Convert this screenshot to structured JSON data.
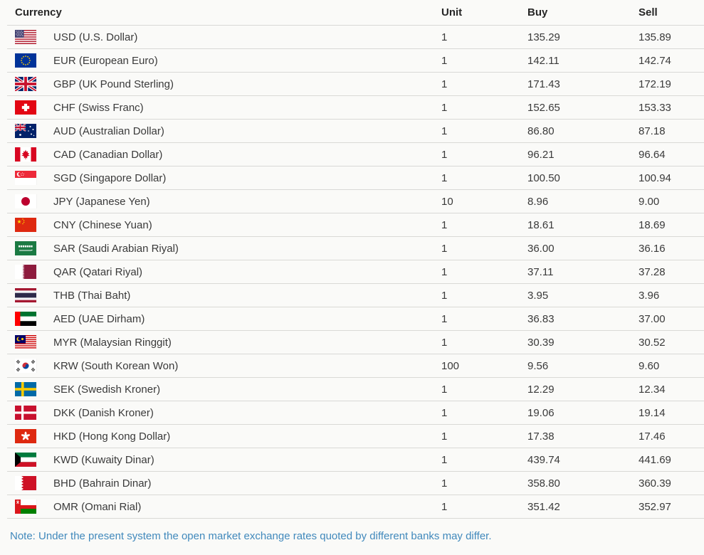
{
  "theme": {
    "background": "#fafaf8",
    "text_color": "#3a3a3a",
    "header_color": "#262626",
    "divider_color": "#d9d9d6",
    "note_color": "#4189bc"
  },
  "table": {
    "columns": [
      "Currency",
      "Unit",
      "Buy",
      "Sell"
    ],
    "rows": [
      {
        "code": "USD",
        "label": "USD (U.S. Dollar)",
        "flag": "us",
        "flag_icon": "us-flag-icon",
        "unit": "1",
        "buy": "135.29",
        "sell": "135.89"
      },
      {
        "code": "EUR",
        "label": "EUR (European Euro)",
        "flag": "eu",
        "flag_icon": "eu-flag-icon",
        "unit": "1",
        "buy": "142.11",
        "sell": "142.74"
      },
      {
        "code": "GBP",
        "label": "GBP (UK Pound Sterling)",
        "flag": "uk",
        "flag_icon": "uk-flag-icon",
        "unit": "1",
        "buy": "171.43",
        "sell": "172.19"
      },
      {
        "code": "CHF",
        "label": "CHF (Swiss Franc)",
        "flag": "ch",
        "flag_icon": "ch-flag-icon",
        "unit": "1",
        "buy": "152.65",
        "sell": "153.33"
      },
      {
        "code": "AUD",
        "label": "AUD (Australian Dollar)",
        "flag": "au",
        "flag_icon": "au-flag-icon",
        "unit": "1",
        "buy": "86.80",
        "sell": "87.18"
      },
      {
        "code": "CAD",
        "label": "CAD (Canadian Dollar)",
        "flag": "ca",
        "flag_icon": "ca-flag-icon",
        "unit": "1",
        "buy": "96.21",
        "sell": "96.64"
      },
      {
        "code": "SGD",
        "label": "SGD (Singapore Dollar)",
        "flag": "sg",
        "flag_icon": "sg-flag-icon",
        "unit": "1",
        "buy": "100.50",
        "sell": "100.94"
      },
      {
        "code": "JPY",
        "label": "JPY (Japanese Yen)",
        "flag": "jp",
        "flag_icon": "jp-flag-icon",
        "unit": "10",
        "buy": "8.96",
        "sell": "9.00"
      },
      {
        "code": "CNY",
        "label": "CNY (Chinese Yuan)",
        "flag": "cn",
        "flag_icon": "cn-flag-icon",
        "unit": "1",
        "buy": "18.61",
        "sell": "18.69"
      },
      {
        "code": "SAR",
        "label": "SAR (Saudi Arabian Riyal)",
        "flag": "sa",
        "flag_icon": "sa-flag-icon",
        "unit": "1",
        "buy": "36.00",
        "sell": "36.16"
      },
      {
        "code": "QAR",
        "label": "QAR (Qatari Riyal)",
        "flag": "qa",
        "flag_icon": "qa-flag-icon",
        "unit": "1",
        "buy": "37.11",
        "sell": "37.28"
      },
      {
        "code": "THB",
        "label": "THB (Thai Baht)",
        "flag": "th",
        "flag_icon": "th-flag-icon",
        "unit": "1",
        "buy": "3.95",
        "sell": "3.96"
      },
      {
        "code": "AED",
        "label": "AED (UAE Dirham)",
        "flag": "ae",
        "flag_icon": "ae-flag-icon",
        "unit": "1",
        "buy": "36.83",
        "sell": "37.00"
      },
      {
        "code": "MYR",
        "label": "MYR (Malaysian Ringgit)",
        "flag": "my",
        "flag_icon": "my-flag-icon",
        "unit": "1",
        "buy": "30.39",
        "sell": "30.52"
      },
      {
        "code": "KRW",
        "label": "KRW (South Korean Won)",
        "flag": "kr",
        "flag_icon": "kr-flag-icon",
        "unit": "100",
        "buy": "9.56",
        "sell": "9.60"
      },
      {
        "code": "SEK",
        "label": "SEK (Swedish Kroner)",
        "flag": "se",
        "flag_icon": "se-flag-icon",
        "unit": "1",
        "buy": "12.29",
        "sell": "12.34"
      },
      {
        "code": "DKK",
        "label": "DKK (Danish Kroner)",
        "flag": "dk",
        "flag_icon": "dk-flag-icon",
        "unit": "1",
        "buy": "19.06",
        "sell": "19.14"
      },
      {
        "code": "HKD",
        "label": "HKD (Hong Kong Dollar)",
        "flag": "hk",
        "flag_icon": "hk-flag-icon",
        "unit": "1",
        "buy": "17.38",
        "sell": "17.46"
      },
      {
        "code": "KWD",
        "label": "KWD (Kuwaity Dinar)",
        "flag": "kw",
        "flag_icon": "kw-flag-icon",
        "unit": "1",
        "buy": "439.74",
        "sell": "441.69"
      },
      {
        "code": "BHD",
        "label": "BHD (Bahrain Dinar)",
        "flag": "bh",
        "flag_icon": "bh-flag-icon",
        "unit": "1",
        "buy": "358.80",
        "sell": "360.39"
      },
      {
        "code": "OMR",
        "label": "OMR (Omani Rial)",
        "flag": "om",
        "flag_icon": "om-flag-icon",
        "unit": "1",
        "buy": "351.42",
        "sell": "352.97"
      }
    ]
  },
  "note": "Note: Under the present system the open market exchange rates quoted by different banks may differ."
}
